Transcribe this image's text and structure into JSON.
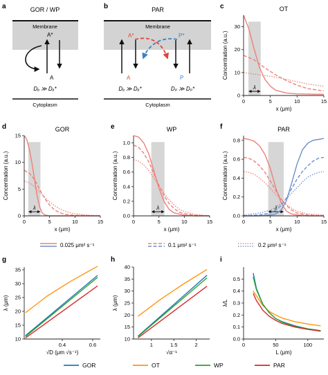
{
  "panel_a": {
    "letter": "a",
    "title": "GOR / WP",
    "membrane": "Membrane",
    "cytoplasm": "Cytoplasm",
    "a_star": "A*",
    "a": "A",
    "relation": "Dₐ ≫ Dₐ*"
  },
  "panel_b": {
    "letter": "b",
    "title": "PAR",
    "membrane": "Membrane",
    "cytoplasm": "Cytoplasm",
    "a_star": "A*",
    "p_star": "P*",
    "a": "A",
    "p": "P",
    "relation_a": "Dₐ ≫ Dₐ*",
    "relation_p": "Dₚ ≫ Dₚ*"
  },
  "colors": {
    "red": "#f07f77",
    "blue": "#6f8fc9",
    "grey": "#d3d3d3",
    "gor": "#1f77b4",
    "ot": "#ff9410",
    "wp": "#2ca02c",
    "par": "#d62728"
  },
  "legend1": [
    {
      "label": "0.025 μm² s⁻¹",
      "dash": "solid"
    },
    {
      "label": "0.1 μm² s⁻¹",
      "dash": "dashed"
    },
    {
      "label": "0.2 μm² s⁻¹",
      "dash": "dotted"
    }
  ],
  "legend2": [
    {
      "label": "GOR",
      "color": "#1f77b4"
    },
    {
      "label": "OT",
      "color": "#ff9410"
    },
    {
      "label": "WP",
      "color": "#2ca02c"
    },
    {
      "label": "PAR",
      "color": "#d62728"
    }
  ],
  "chart_data": [
    {
      "panel": "c",
      "title": "OT",
      "type": "line",
      "xlabel": "x (μm)",
      "ylabel": "Concentration (a.u.)",
      "xlim": [
        0,
        15
      ],
      "ylim": [
        0,
        35
      ],
      "xticks": [
        0,
        5,
        10,
        15
      ],
      "yticks": [
        0,
        10,
        20,
        30
      ],
      "annotation": "λ",
      "series": [
        {
          "name": "0.025 μm² s⁻¹",
          "color": "#f07f77",
          "dash": "solid",
          "x": [
            0,
            1,
            2,
            3,
            4,
            5,
            6,
            8,
            10,
            15
          ],
          "y": [
            35,
            29,
            20,
            12,
            7,
            4,
            2.3,
            1.1,
            0.7,
            0.5
          ]
        },
        {
          "name": "0.1 μm² s⁻¹",
          "color": "#f07f77",
          "dash": "dashed",
          "x": [
            0,
            2,
            4,
            6,
            8,
            10,
            12,
            15
          ],
          "y": [
            17.5,
            15.5,
            12,
            9,
            6.5,
            4.5,
            3,
            2
          ]
        },
        {
          "name": "0.2 μm² s⁻¹",
          "color": "#f07f77",
          "dash": "dotted",
          "x": [
            0,
            3,
            6,
            9,
            12,
            15
          ],
          "y": [
            10,
            9,
            8,
            6.5,
            5,
            4
          ]
        }
      ]
    },
    {
      "panel": "d",
      "title": "GOR",
      "type": "line",
      "xlabel": "x (μm)",
      "ylabel": "Concentration (a.u.)",
      "xlim": [
        0,
        15
      ],
      "ylim": [
        0,
        15
      ],
      "xticks": [
        0,
        5,
        10,
        15
      ],
      "yticks": [
        0,
        5,
        10,
        15
      ],
      "annotation": "λ",
      "series": [
        {
          "name": "0.025 μm² s⁻¹",
          "color": "#f07f77",
          "dash": "solid",
          "x": [
            0,
            0.5,
            1,
            1.5,
            2,
            2.5,
            3,
            3.5,
            4,
            5,
            15
          ],
          "y": [
            15,
            14.3,
            12.5,
            10,
            7,
            4,
            1.8,
            0.6,
            0.2,
            0,
            0
          ]
        },
        {
          "name": "0.1 μm² s⁻¹",
          "color": "#f07f77",
          "dash": "dashed",
          "x": [
            0,
            1,
            2,
            3,
            4,
            5,
            6,
            7,
            8,
            10,
            15
          ],
          "y": [
            8.5,
            8,
            6.8,
            5,
            3.3,
            2,
            1.1,
            0.6,
            0.3,
            0.1,
            0
          ]
        },
        {
          "name": "0.2 μm² s⁻¹",
          "color": "#f07f77",
          "dash": "dotted",
          "x": [
            0,
            1,
            2,
            3,
            4,
            5,
            6,
            7,
            8,
            9,
            10,
            12,
            15
          ],
          "y": [
            6.5,
            6.2,
            5.5,
            4.5,
            3.5,
            2.6,
            1.9,
            1.3,
            0.9,
            0.6,
            0.4,
            0.2,
            0
          ]
        }
      ]
    },
    {
      "panel": "e",
      "title": "WP",
      "type": "line",
      "xlabel": "x (μm)",
      "ylabel": "Concentration (a.u.)",
      "xlim": [
        0,
        15
      ],
      "ylim": [
        0,
        1.1
      ],
      "xticks": [
        0,
        5,
        10,
        15
      ],
      "yticks": [
        0,
        0.2,
        0.4,
        0.6,
        0.8,
        1.0
      ],
      "annotation": "λ",
      "series": [
        {
          "name": "0.025 μm² s⁻¹",
          "color": "#f07f77",
          "dash": "solid",
          "x": [
            0,
            1,
            2,
            3,
            4,
            5,
            6,
            7,
            8,
            10,
            12,
            15
          ],
          "y": [
            1.1,
            1.08,
            1.0,
            0.85,
            0.62,
            0.38,
            0.2,
            0.09,
            0.04,
            0.01,
            0,
            0
          ]
        },
        {
          "name": "0.1 μm² s⁻¹",
          "color": "#f07f77",
          "dash": "dashed",
          "x": [
            0,
            1,
            2,
            3,
            4,
            5,
            6,
            7,
            8,
            9,
            10,
            12,
            15
          ],
          "y": [
            0.97,
            0.94,
            0.86,
            0.74,
            0.58,
            0.42,
            0.28,
            0.17,
            0.1,
            0.05,
            0.03,
            0.01,
            0
          ]
        },
        {
          "name": "0.2 μm² s⁻¹",
          "color": "#f07f77",
          "dash": "dotted",
          "x": [
            0,
            1,
            2,
            3,
            4,
            5,
            6,
            7,
            8,
            9,
            10,
            12,
            15
          ],
          "y": [
            0.77,
            0.75,
            0.7,
            0.62,
            0.52,
            0.41,
            0.31,
            0.22,
            0.15,
            0.09,
            0.06,
            0.02,
            0
          ]
        }
      ]
    },
    {
      "panel": "f",
      "title": "PAR",
      "type": "line",
      "xlabel": "x (μm)",
      "ylabel": "Concentration (a.u.)",
      "xlim": [
        0,
        15
      ],
      "ylim": [
        0,
        0.85
      ],
      "xticks": [
        0,
        5,
        10,
        15
      ],
      "yticks": [
        0,
        0.2,
        0.4,
        0.6,
        0.8
      ],
      "annotation": "λ",
      "series": [
        {
          "name": "A 0.025 μm² s⁻¹",
          "color": "#f07f77",
          "dash": "solid",
          "x": [
            0,
            1,
            2,
            3,
            4,
            5,
            6,
            7,
            8,
            9,
            10,
            12,
            15
          ],
          "y": [
            0.82,
            0.81,
            0.79,
            0.74,
            0.65,
            0.5,
            0.3,
            0.14,
            0.05,
            0.02,
            0.01,
            0,
            0
          ]
        },
        {
          "name": "A 0.1 μm² s⁻¹",
          "color": "#f07f77",
          "dash": "dashed",
          "x": [
            0,
            1,
            2,
            3,
            4,
            5,
            6,
            7,
            8,
            9,
            10,
            12,
            15
          ],
          "y": [
            0.62,
            0.61,
            0.58,
            0.53,
            0.46,
            0.37,
            0.27,
            0.18,
            0.11,
            0.06,
            0.03,
            0.01,
            0
          ]
        },
        {
          "name": "A 0.2 μm² s⁻¹",
          "color": "#f07f77",
          "dash": "dotted",
          "x": [
            0,
            1,
            2,
            3,
            4,
            5,
            6,
            7,
            8,
            9,
            10,
            12,
            15
          ],
          "y": [
            0.47,
            0.46,
            0.44,
            0.4,
            0.35,
            0.29,
            0.23,
            0.17,
            0.12,
            0.08,
            0.05,
            0.02,
            0.01
          ]
        },
        {
          "name": "P 0.025 μm² s⁻¹",
          "color": "#6f8fc9",
          "dash": "solid",
          "x": [
            0,
            3,
            5,
            6,
            7,
            8,
            9,
            10,
            11,
            12,
            13,
            14,
            15
          ],
          "y": [
            0,
            0,
            0.01,
            0.02,
            0.06,
            0.16,
            0.35,
            0.55,
            0.7,
            0.77,
            0.8,
            0.81,
            0.82
          ]
        },
        {
          "name": "P 0.1 μm² s⁻¹",
          "color": "#6f8fc9",
          "dash": "dashed",
          "x": [
            0,
            3,
            5,
            6,
            7,
            8,
            9,
            10,
            11,
            12,
            13,
            14,
            15
          ],
          "y": [
            0,
            0.01,
            0.03,
            0.06,
            0.11,
            0.19,
            0.29,
            0.39,
            0.47,
            0.53,
            0.58,
            0.61,
            0.62
          ]
        },
        {
          "name": "P 0.2 μm² s⁻¹",
          "color": "#6f8fc9",
          "dash": "dotted",
          "x": [
            0,
            3,
            5,
            6,
            7,
            8,
            9,
            10,
            11,
            12,
            13,
            14,
            15
          ],
          "y": [
            0.01,
            0.03,
            0.06,
            0.09,
            0.13,
            0.18,
            0.24,
            0.3,
            0.36,
            0.41,
            0.44,
            0.46,
            0.47
          ]
        }
      ]
    },
    {
      "panel": "g",
      "type": "line",
      "xlabel": "√D (μm √s⁻¹)",
      "ylabel": "λ (μm)",
      "xlim": [
        0.15,
        0.65
      ],
      "ylim": [
        10,
        36
      ],
      "xticks": [
        0.4,
        0.6
      ],
      "yticks": [
        10,
        15,
        20,
        25,
        30,
        35
      ],
      "series": [
        {
          "name": "OT",
          "color": "#ff9410",
          "dash": "solid",
          "x": [
            0.158,
            0.3,
            0.45,
            0.632
          ],
          "y": [
            19.5,
            25.5,
            30.7,
            36.3
          ]
        },
        {
          "name": "GOR",
          "color": "#1f77b4",
          "dash": "solid",
          "x": [
            0.158,
            0.632
          ],
          "y": [
            11.2,
            33
          ]
        },
        {
          "name": "WP",
          "color": "#2ca02c",
          "dash": "solid",
          "x": [
            0.158,
            0.632
          ],
          "y": [
            10.9,
            32.3
          ]
        },
        {
          "name": "PAR",
          "color": "#d62728",
          "dash": "solid",
          "x": [
            0.158,
            0.632
          ],
          "y": [
            10.4,
            29.2
          ]
        }
      ]
    },
    {
      "panel": "h",
      "type": "line",
      "xlabel": "√α⁻¹",
      "ylabel": "λ (μm)",
      "xlim": [
        0.6,
        2.3
      ],
      "ylim": [
        10,
        40
      ],
      "xticks": [
        1.0,
        1.5,
        2.0
      ],
      "yticks": [
        10,
        15,
        20,
        25,
        30,
        35,
        40
      ],
      "series": [
        {
          "name": "OT",
          "color": "#ff9410",
          "dash": "solid",
          "x": [
            0.7,
            1.2,
            1.7,
            2.24
          ],
          "y": [
            19.5,
            26.5,
            32.8,
            39
          ]
        },
        {
          "name": "GOR",
          "color": "#1f77b4",
          "dash": "solid",
          "x": [
            0.7,
            2.24
          ],
          "y": [
            11.2,
            36.6
          ]
        },
        {
          "name": "WP",
          "color": "#2ca02c",
          "dash": "solid",
          "x": [
            0.7,
            2.24
          ],
          "y": [
            11,
            35.5
          ]
        },
        {
          "name": "PAR",
          "color": "#d62728",
          "dash": "solid",
          "x": [
            0.7,
            2.24
          ],
          "y": [
            10.5,
            32
          ]
        }
      ]
    },
    {
      "panel": "i",
      "type": "line",
      "xlabel": "L (μm)",
      "ylabel": "λ/L",
      "xlim": [
        0,
        125
      ],
      "ylim": [
        0,
        0.6
      ],
      "xticks": [
        0,
        50,
        100
      ],
      "yticks": [
        0,
        0.1,
        0.2,
        0.3,
        0.4,
        0.5
      ],
      "series": [
        {
          "name": "GOR",
          "color": "#1f77b4",
          "dash": "solid",
          "x": [
            15,
            20,
            30,
            40,
            50,
            60,
            80,
            100,
            120
          ],
          "y": [
            0.55,
            0.42,
            0.29,
            0.22,
            0.17,
            0.145,
            0.11,
            0.085,
            0.07
          ]
        },
        {
          "name": "OT",
          "color": "#ff9410",
          "dash": "solid",
          "x": [
            15,
            20,
            30,
            40,
            50,
            60,
            80,
            100,
            120
          ],
          "y": [
            0.4,
            0.36,
            0.28,
            0.23,
            0.2,
            0.175,
            0.145,
            0.125,
            0.11
          ]
        },
        {
          "name": "WP",
          "color": "#2ca02c",
          "dash": "solid",
          "x": [
            15,
            20,
            30,
            40,
            50,
            60,
            80,
            100,
            120
          ],
          "y": [
            0.52,
            0.41,
            0.29,
            0.22,
            0.17,
            0.14,
            0.105,
            0.085,
            0.07
          ]
        },
        {
          "name": "PAR",
          "color": "#d62728",
          "dash": "solid",
          "x": [
            15,
            20,
            30,
            40,
            50,
            60,
            80,
            100,
            120
          ],
          "y": [
            0.38,
            0.32,
            0.24,
            0.19,
            0.155,
            0.13,
            0.1,
            0.08,
            0.065
          ]
        }
      ]
    }
  ]
}
